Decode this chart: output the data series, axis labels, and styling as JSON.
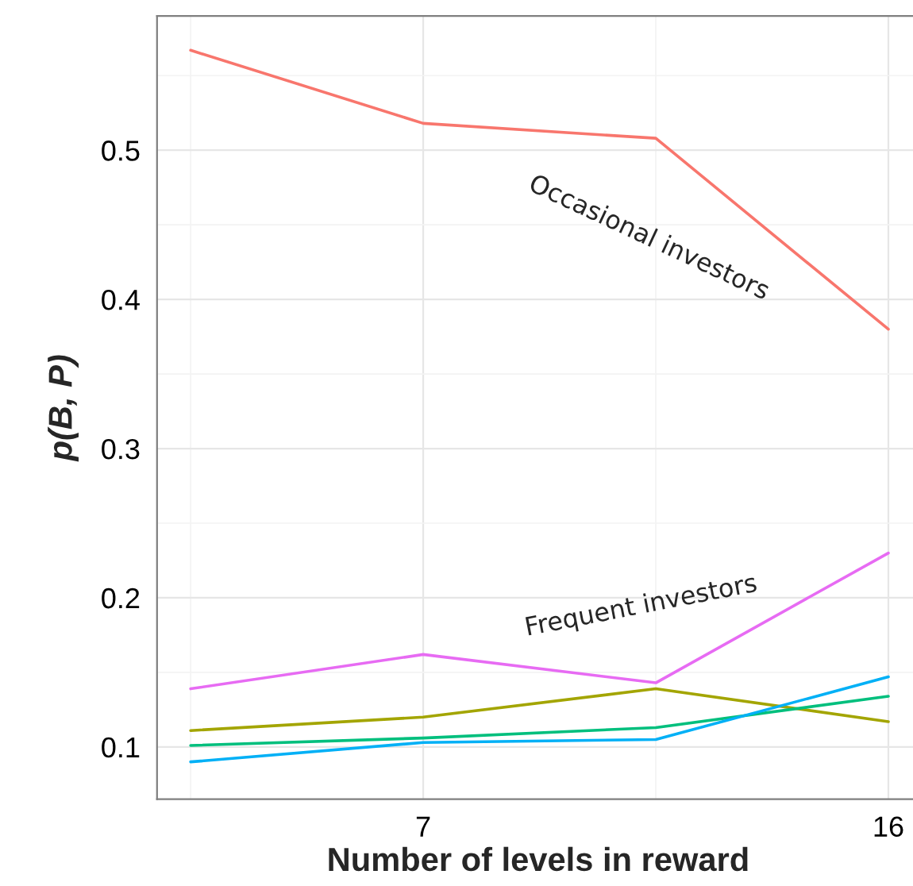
{
  "chart_data": {
    "type": "line",
    "xlabel": "Number of levels in reward",
    "ylabel": "p(B, P)",
    "x": [
      2.5,
      7,
      11.5,
      16
    ],
    "series": [
      {
        "color": "#F8766D",
        "values": [
          0.567,
          0.518,
          0.508,
          0.38
        ]
      },
      {
        "color": "#A3A500",
        "values": [
          0.111,
          0.12,
          0.139,
          0.117
        ]
      },
      {
        "color": "#00BF7D",
        "values": [
          0.101,
          0.106,
          0.113,
          0.134
        ]
      },
      {
        "color": "#00B0F6",
        "values": [
          0.09,
          0.103,
          0.105,
          0.147
        ]
      },
      {
        "color": "#E76BF3",
        "values": [
          0.139,
          0.162,
          0.143,
          0.23
        ]
      }
    ],
    "xlim": [
      1.85,
      16.6
    ],
    "ylim": [
      0.065,
      0.59
    ],
    "xticks": [
      7,
      16
    ],
    "yticks": [
      0.1,
      0.2,
      0.3,
      0.4,
      0.5
    ],
    "grid": true,
    "marker": "none",
    "line_style": "solid",
    "annotations": [
      "Occasional investors",
      "Frequent investors"
    ]
  }
}
